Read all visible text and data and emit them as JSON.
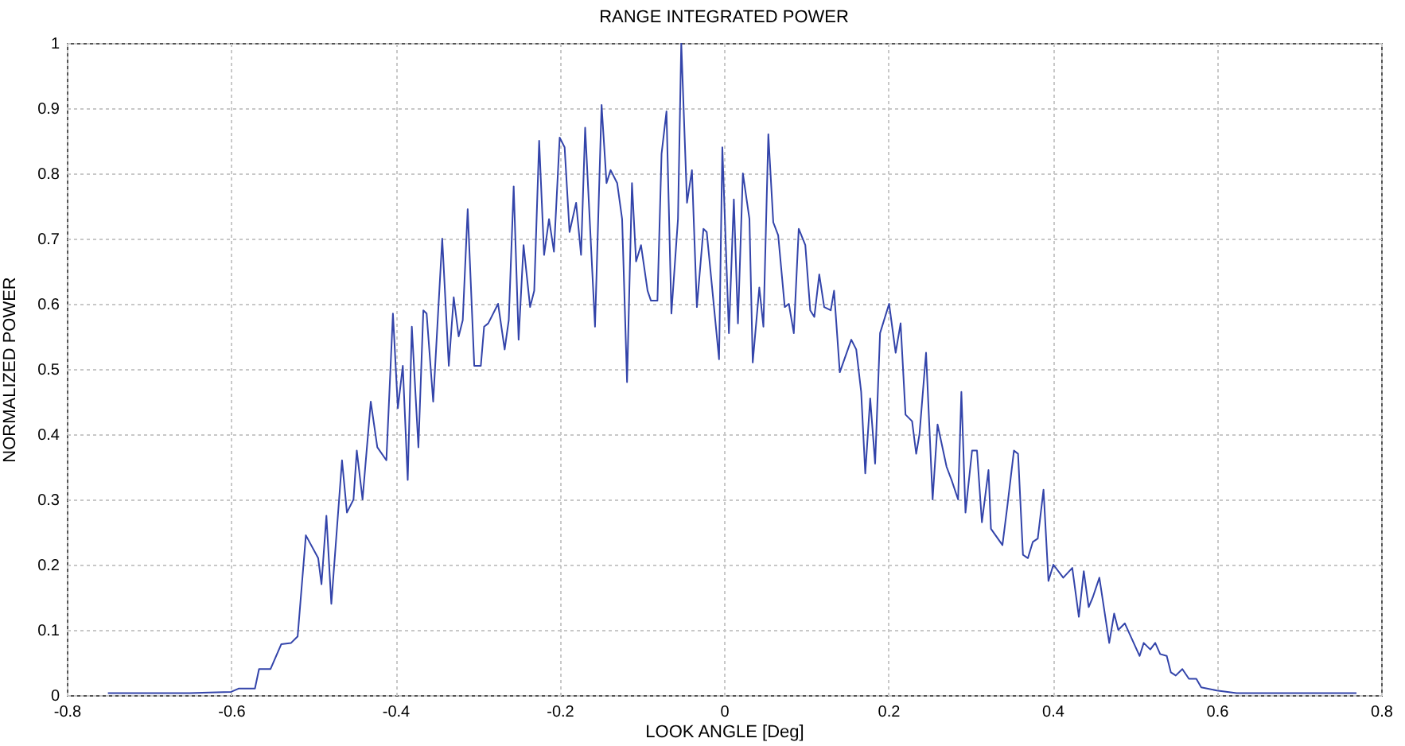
{
  "chart_data": {
    "type": "line",
    "title": "RANGE INTEGRATED POWER",
    "xlabel": "LOOK ANGLE [Deg]",
    "ylabel": "NORMALIZED POWER",
    "xlim": [
      -0.8,
      0.8
    ],
    "xticks": [
      -0.8,
      -0.6,
      -0.4,
      -0.2,
      0,
      0.2,
      0.4,
      0.6,
      0.8
    ],
    "ylim": [
      0,
      1
    ],
    "yticks": [
      0,
      0.1,
      0.2,
      0.3,
      0.4,
      0.5,
      0.6,
      0.7,
      0.8,
      0.9,
      1
    ],
    "grid": true,
    "series": [
      {
        "color": "#3344aa",
        "x": [
          -0.75,
          -0.7,
          -0.65,
          -0.6,
          -0.591,
          -0.571,
          -0.566,
          -0.552,
          -0.539,
          -0.527,
          -0.519,
          -0.509,
          -0.494,
          -0.49,
          -0.484,
          -0.478,
          -0.465,
          -0.459,
          -0.451,
          -0.447,
          -0.44,
          -0.43,
          -0.422,
          -0.411,
          -0.403,
          -0.397,
          -0.391,
          -0.385,
          -0.38,
          -0.372,
          -0.366,
          -0.362,
          -0.354,
          -0.343,
          -0.335,
          -0.329,
          -0.323,
          -0.318,
          -0.312,
          -0.304,
          -0.296,
          -0.292,
          -0.287,
          -0.275,
          -0.267,
          -0.262,
          -0.256,
          -0.25,
          -0.244,
          -0.236,
          -0.231,
          -0.225,
          -0.219,
          -0.213,
          -0.207,
          -0.2,
          -0.194,
          -0.188,
          -0.18,
          -0.174,
          -0.169,
          -0.157,
          -0.149,
          -0.143,
          -0.138,
          -0.13,
          -0.124,
          -0.118,
          -0.112,
          -0.107,
          -0.101,
          -0.093,
          -0.089,
          -0.081,
          -0.076,
          -0.07,
          -0.064,
          -0.056,
          -0.052,
          -0.045,
          -0.039,
          -0.033,
          -0.025,
          -0.021,
          -0.006,
          -0.002,
          0.006,
          0.012,
          0.017,
          0.023,
          0.031,
          0.035,
          0.043,
          0.048,
          0.054,
          0.06,
          0.066,
          0.074,
          0.079,
          0.085,
          0.091,
          0.099,
          0.105,
          0.11,
          0.116,
          0.122,
          0.13,
          0.134,
          0.141,
          0.155,
          0.161,
          0.167,
          0.172,
          0.178,
          0.184,
          0.19,
          0.201,
          0.209,
          0.215,
          0.221,
          0.229,
          0.234,
          0.238,
          0.246,
          0.254,
          0.26,
          0.271,
          0.277,
          0.285,
          0.289,
          0.294,
          0.302,
          0.308,
          0.314,
          0.322,
          0.325,
          0.339,
          0.345,
          0.353,
          0.358,
          0.364,
          0.37,
          0.376,
          0.382,
          0.389,
          0.395,
          0.401,
          0.413,
          0.424,
          0.432,
          0.438,
          0.444,
          0.449,
          0.457,
          0.469,
          0.475,
          0.48,
          0.488,
          0.506,
          0.511,
          0.519,
          0.525,
          0.531,
          0.539,
          0.544,
          0.55,
          0.558,
          0.566,
          0.575,
          0.581,
          0.6,
          0.624,
          0.7,
          0.77
        ],
        "values": [
          0.003,
          0.003,
          0.003,
          0.005,
          0.01,
          0.01,
          0.04,
          0.04,
          0.078,
          0.08,
          0.09,
          0.245,
          0.21,
          0.17,
          0.275,
          0.14,
          0.36,
          0.28,
          0.3,
          0.375,
          0.3,
          0.45,
          0.38,
          0.36,
          0.585,
          0.44,
          0.505,
          0.33,
          0.565,
          0.38,
          0.59,
          0.585,
          0.45,
          0.7,
          0.505,
          0.61,
          0.55,
          0.575,
          0.745,
          0.505,
          0.505,
          0.565,
          0.57,
          0.6,
          0.53,
          0.575,
          0.78,
          0.545,
          0.69,
          0.595,
          0.62,
          0.85,
          0.675,
          0.73,
          0.68,
          0.855,
          0.84,
          0.71,
          0.755,
          0.675,
          0.87,
          0.565,
          0.905,
          0.785,
          0.805,
          0.785,
          0.73,
          0.48,
          0.785,
          0.665,
          0.69,
          0.62,
          0.605,
          0.605,
          0.83,
          0.895,
          0.585,
          0.73,
          1.0,
          0.755,
          0.805,
          0.595,
          0.715,
          0.71,
          0.515,
          0.84,
          0.555,
          0.76,
          0.57,
          0.8,
          0.73,
          0.51,
          0.625,
          0.565,
          0.86,
          0.725,
          0.705,
          0.595,
          0.6,
          0.555,
          0.715,
          0.69,
          0.59,
          0.58,
          0.645,
          0.595,
          0.59,
          0.62,
          0.495,
          0.545,
          0.53,
          0.465,
          0.34,
          0.455,
          0.355,
          0.555,
          0.6,
          0.525,
          0.57,
          0.43,
          0.42,
          0.37,
          0.4,
          0.525,
          0.3,
          0.415,
          0.35,
          0.33,
          0.3,
          0.465,
          0.28,
          0.375,
          0.375,
          0.265,
          0.345,
          0.255,
          0.23,
          0.29,
          0.375,
          0.37,
          0.215,
          0.21,
          0.235,
          0.24,
          0.315,
          0.175,
          0.2,
          0.18,
          0.195,
          0.12,
          0.19,
          0.135,
          0.15,
          0.18,
          0.08,
          0.125,
          0.1,
          0.11,
          0.06,
          0.08,
          0.07,
          0.08,
          0.063,
          0.06,
          0.035,
          0.03,
          0.04,
          0.025,
          0.025,
          0.012,
          0.007,
          0.003,
          0.003,
          0.003
        ]
      }
    ]
  }
}
